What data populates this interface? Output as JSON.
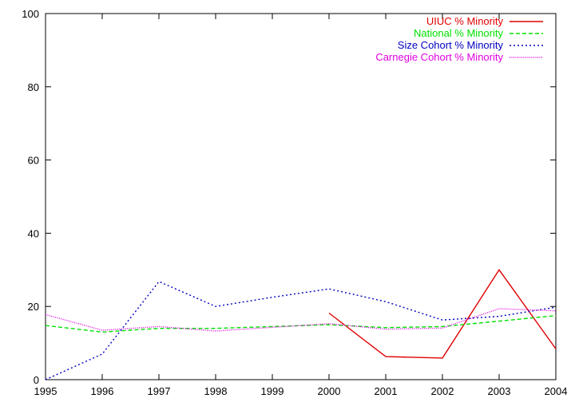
{
  "chart_data": {
    "type": "line",
    "title": "",
    "xlabel": "",
    "ylabel": "",
    "xlim": [
      1995,
      2004
    ],
    "ylim": [
      0,
      100
    ],
    "x_ticks": [
      "1995",
      "1996",
      "1997",
      "1998",
      "1999",
      "2000",
      "2001",
      "2002",
      "2003",
      "2004"
    ],
    "y_ticks": [
      "0",
      "20",
      "40",
      "60",
      "80",
      "100"
    ],
    "grid": false,
    "legend_position": "top-right",
    "series": [
      {
        "name": "UIUC % Minority",
        "color": "#e00000",
        "style": "solid",
        "x": [
          2000,
          2001,
          2002,
          2003,
          2004
        ],
        "y": [
          18.2,
          6.3,
          5.9,
          30.0,
          8.4
        ]
      },
      {
        "name": "National % Minority",
        "color": "#00e000",
        "style": "dashed",
        "x": [
          1995,
          1996,
          1997,
          1998,
          1999,
          2000,
          2001,
          2002,
          2003,
          2004
        ],
        "y": [
          14.8,
          13.0,
          14.0,
          14.0,
          14.5,
          15.0,
          14.2,
          14.5,
          16.0,
          17.5
        ]
      },
      {
        "name": "Size Cohort % Minority",
        "color": "#0000c0",
        "style": "dotted",
        "x": [
          1995,
          1996,
          1997,
          1998,
          1999,
          2000,
          2001,
          2002,
          2003,
          2004
        ],
        "y": [
          0,
          7.0,
          26.8,
          20.0,
          22.5,
          24.8,
          21.3,
          16.3,
          17.3,
          19.8
        ]
      },
      {
        "name": "Carnegie Cohort % Minority",
        "color": "#e000e0",
        "style": "finedotted",
        "x": [
          1995,
          1996,
          1997,
          1998,
          1999,
          2000,
          2001,
          2002,
          2003,
          2004
        ],
        "y": [
          17.8,
          13.5,
          14.5,
          13.3,
          14.3,
          15.3,
          13.8,
          14.1,
          19.4,
          18.8
        ]
      }
    ]
  }
}
